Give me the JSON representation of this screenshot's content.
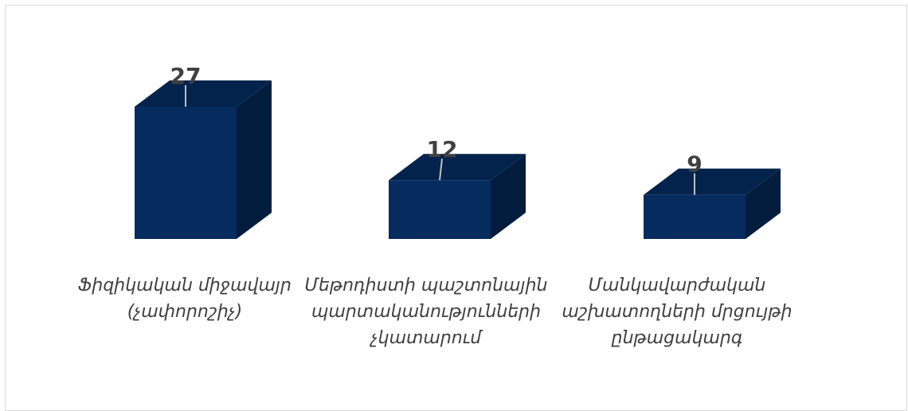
{
  "chart_data": {
    "type": "bar",
    "style": "3d-column",
    "categories": [
      "Ֆիզիկական միջավայր (չափորոշիչ)",
      "Մեթոդիստի պաշտոնային պարտականությունների չկատարում",
      "Մանկավարժական աշխատողների մրցույթի ընթացակարգ"
    ],
    "values": [
      27,
      12,
      9
    ],
    "data_labels": [
      "27",
      "12",
      "9"
    ],
    "title": "",
    "xlabel": "",
    "ylabel": "",
    "ylim": [
      0,
      27
    ],
    "grid": false,
    "legend": "none",
    "colors": {
      "front": "#052b5f",
      "top": "#03234c",
      "side": "#021c3d",
      "label": "#404040",
      "leader": "#bfbfbf"
    }
  }
}
